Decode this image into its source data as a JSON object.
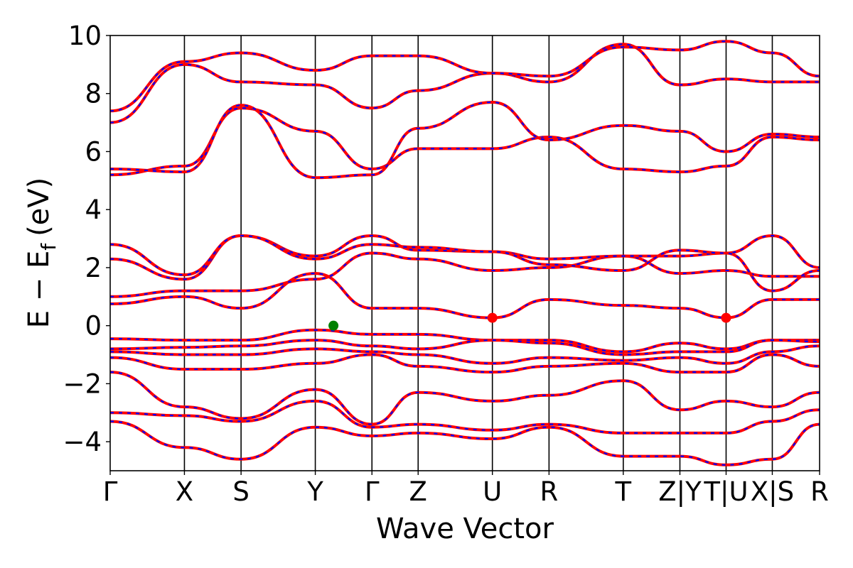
{
  "chart_data": {
    "type": "line",
    "title": "",
    "xlabel": "Wave Vector",
    "ylabel": "E − E",
    "ylabel_sub": "f",
    "ylabel_unit": "(eV)",
    "ylim": [
      -5,
      10
    ],
    "yticks": [
      -4,
      -2,
      0,
      2,
      4,
      6,
      8,
      10
    ],
    "ytick_labels": [
      "−4",
      "−2",
      "0",
      "2",
      "4",
      "6",
      "8",
      "10"
    ],
    "xlim": [
      0,
      12.9
    ],
    "kpoints": [
      {
        "label": "Γ",
        "x": 0.0
      },
      {
        "label": "X",
        "x": 1.35
      },
      {
        "label": "S",
        "x": 2.38
      },
      {
        "label": "Y",
        "x": 3.73
      },
      {
        "label": "Γ",
        "x": 4.76
      },
      {
        "label": "Z",
        "x": 5.6
      },
      {
        "label": "U",
        "x": 6.95
      },
      {
        "label": "R",
        "x": 7.98
      },
      {
        "label": "T",
        "x": 9.33
      },
      {
        "label": "Z|Y",
        "x": 10.36
      },
      {
        "label": "T|U",
        "x": 11.2
      },
      {
        "label": "X|S",
        "x": 12.04
      },
      {
        "label": "R",
        "x": 12.9
      }
    ],
    "grid": false,
    "line_colors": {
      "primary": "#ff0000",
      "overlay": "#0000ff"
    },
    "markers": [
      {
        "x": 4.06,
        "y": 0.0,
        "color": "#008000"
      },
      {
        "x": 6.95,
        "y": 0.27,
        "color": "#ff0000"
      },
      {
        "x": 11.2,
        "y": 0.27,
        "color": "#ff0000"
      }
    ],
    "bands": [
      {
        "name": "v1",
        "y": [
          -0.45,
          -0.5,
          -0.5,
          -0.15,
          -0.3,
          -0.3,
          -0.5,
          -0.5,
          -0.9,
          -0.6,
          -0.8,
          -0.5,
          -0.5
        ]
      },
      {
        "name": "v2",
        "y": [
          -0.8,
          -0.75,
          -0.7,
          -0.5,
          -0.7,
          -0.8,
          -0.5,
          -0.6,
          -1.0,
          -0.9,
          -0.9,
          -0.5,
          -0.55
        ]
      },
      {
        "name": "v3",
        "y": [
          -0.9,
          -1.0,
          -1.0,
          -0.8,
          -0.9,
          -1.0,
          -1.3,
          -1.1,
          -1.2,
          -1.1,
          -1.3,
          -0.9,
          -0.7
        ]
      },
      {
        "name": "v4",
        "y": [
          -1.1,
          -1.5,
          -1.5,
          -1.3,
          -1.0,
          -1.4,
          -1.6,
          -1.4,
          -1.3,
          -1.6,
          -1.6,
          -1.0,
          -1.4
        ]
      },
      {
        "name": "v5",
        "y": [
          -1.6,
          -2.8,
          -3.2,
          -2.2,
          -3.4,
          -2.3,
          -2.6,
          -2.4,
          -1.9,
          -2.9,
          -2.6,
          -2.8,
          -2.3
        ]
      },
      {
        "name": "v6",
        "y": [
          -3.0,
          -3.1,
          -3.3,
          -2.6,
          -3.5,
          -3.4,
          -3.6,
          -3.4,
          -3.7,
          -3.7,
          -3.7,
          -3.3,
          -2.9
        ]
      },
      {
        "name": "v7",
        "y": [
          -3.3,
          -4.2,
          -4.6,
          -3.5,
          -3.8,
          -3.7,
          -3.9,
          -3.5,
          -4.5,
          -4.5,
          -4.8,
          -4.6,
          -3.4
        ]
      },
      {
        "name": "c1",
        "y": [
          0.75,
          1.0,
          0.6,
          1.8,
          0.6,
          0.6,
          0.27,
          0.9,
          0.7,
          0.6,
          0.27,
          0.9,
          0.9
        ]
      },
      {
        "name": "c2",
        "y": [
          1.0,
          1.2,
          1.2,
          1.6,
          2.5,
          2.3,
          1.9,
          2.0,
          2.4,
          1.8,
          1.9,
          1.7,
          1.7
        ]
      },
      {
        "name": "c3",
        "y": [
          2.3,
          1.6,
          3.1,
          2.4,
          3.1,
          2.6,
          2.55,
          2.3,
          2.4,
          2.4,
          2.5,
          3.1,
          2.0
        ]
      },
      {
        "name": "c4",
        "y": [
          2.8,
          1.75,
          3.1,
          2.3,
          2.8,
          2.7,
          2.55,
          2.1,
          1.9,
          2.6,
          2.5,
          1.2,
          1.9
        ]
      },
      {
        "name": "c5",
        "y": [
          5.2,
          5.5,
          7.5,
          6.7,
          5.4,
          6.1,
          6.1,
          6.5,
          5.4,
          5.3,
          5.5,
          6.5,
          6.4
        ]
      },
      {
        "name": "c6",
        "y": [
          5.4,
          5.3,
          7.6,
          5.1,
          5.2,
          6.8,
          7.7,
          6.4,
          6.9,
          6.7,
          6.0,
          6.6,
          6.5
        ]
      },
      {
        "name": "c7",
        "y": [
          7.0,
          9.0,
          8.4,
          8.3,
          7.5,
          8.1,
          8.7,
          8.4,
          9.7,
          8.3,
          8.5,
          8.4,
          8.4
        ]
      },
      {
        "name": "c8",
        "y": [
          7.4,
          9.1,
          9.4,
          8.8,
          9.3,
          9.3,
          8.7,
          8.6,
          9.6,
          9.5,
          9.8,
          9.4,
          8.6
        ]
      }
    ]
  }
}
